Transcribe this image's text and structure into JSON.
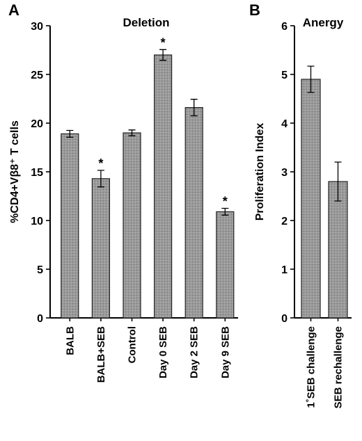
{
  "chart_data": [
    {
      "type": "bar",
      "panel": "A",
      "title": "Deletion",
      "ylabel": "%CD4+Vβ8⁺ T cells",
      "ylim": [
        0,
        30
      ],
      "yticks": [
        "0",
        "5",
        "10",
        "15",
        "20",
        "25",
        "30"
      ],
      "categories": [
        "BALB",
        "BALB+SEB",
        "Control",
        "Day 0 SEB",
        "Day 2 SEB",
        "Day 9 SEB"
      ],
      "values": [
        18.9,
        14.3,
        19.0,
        27.0,
        21.6,
        10.9
      ],
      "errors": [
        0.35,
        0.85,
        0.3,
        0.55,
        0.85,
        0.35
      ],
      "significance": [
        "",
        "*",
        "",
        "*",
        "",
        "*"
      ],
      "bar_color": "#8f8f8f"
    },
    {
      "type": "bar",
      "panel": "B",
      "title": "Anergy",
      "ylabel": "Proliferation Index",
      "ylim": [
        0,
        6
      ],
      "yticks": [
        "0",
        "1",
        "2",
        "3",
        "4",
        "5",
        "6"
      ],
      "categories": [
        "1˚SEB challenge",
        "SEB rechallenge"
      ],
      "values": [
        4.9,
        2.8
      ],
      "errors": [
        0.27,
        0.4
      ],
      "significance": [
        "",
        ""
      ],
      "bar_color": "#8f8f8f"
    }
  ]
}
